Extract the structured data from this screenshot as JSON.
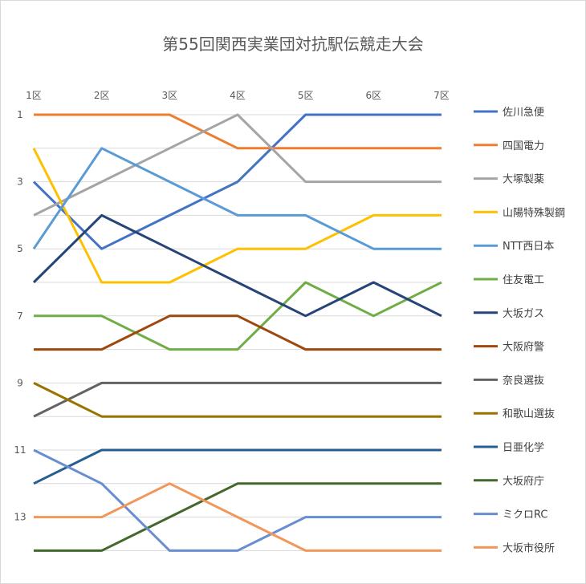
{
  "chart_data": {
    "type": "line",
    "title": "第55回関西実業団対抗駅伝競走大会",
    "categories": [
      "1区",
      "2区",
      "3区",
      "4区",
      "5区",
      "6区",
      "7区"
    ],
    "y_tick_labels": [
      "1",
      "3",
      "5",
      "7",
      "9",
      "11",
      "13"
    ],
    "y_axis": {
      "reversed": true,
      "ylim": [
        1,
        14
      ]
    },
    "x_axis_position": "top",
    "grid": true,
    "legend": "right",
    "series": [
      {
        "name": "佐川急便",
        "color": "#4472C4",
        "values": [
          3,
          5,
          4,
          3,
          1,
          1,
          1
        ]
      },
      {
        "name": "四国電力",
        "color": "#ED7D31",
        "values": [
          1,
          1,
          1,
          2,
          2,
          2,
          2
        ]
      },
      {
        "name": "大塚製薬",
        "color": "#A5A5A5",
        "values": [
          4,
          3,
          2,
          1,
          3,
          3,
          3
        ]
      },
      {
        "name": "山陽特殊製鋼",
        "color": "#FFC000",
        "values": [
          2,
          6,
          6,
          5,
          5,
          4,
          4
        ]
      },
      {
        "name": "NTT西日本",
        "color": "#5B9BD5",
        "values": [
          5,
          2,
          3,
          4,
          4,
          5,
          5
        ]
      },
      {
        "name": "住友電工",
        "color": "#70AD47",
        "values": [
          7,
          7,
          8,
          8,
          6,
          7,
          6
        ]
      },
      {
        "name": "大坂ガス",
        "color": "#264478",
        "values": [
          6,
          4,
          5,
          6,
          7,
          6,
          7
        ]
      },
      {
        "name": "大阪府警",
        "color": "#9E480E",
        "values": [
          8,
          8,
          7,
          7,
          8,
          8,
          8
        ]
      },
      {
        "name": "奈良選抜",
        "color": "#636363",
        "values": [
          10,
          9,
          9,
          9,
          9,
          9,
          9
        ]
      },
      {
        "name": "和歌山選抜",
        "color": "#997300",
        "values": [
          9,
          10,
          10,
          10,
          10,
          10,
          10
        ]
      },
      {
        "name": "日亜化学",
        "color": "#255E91",
        "values": [
          12,
          11,
          11,
          11,
          11,
          11,
          11
        ]
      },
      {
        "name": "大坂府庁",
        "color": "#43682B",
        "values": [
          14,
          14,
          13,
          12,
          12,
          12,
          12
        ]
      },
      {
        "name": "ミクロRC",
        "color": "#698ED0",
        "values": [
          11,
          12,
          14,
          14,
          13,
          13,
          13
        ]
      },
      {
        "name": "大坂市役所",
        "color": "#F1975A",
        "values": [
          13,
          13,
          12,
          13,
          14,
          14,
          14
        ]
      }
    ]
  }
}
